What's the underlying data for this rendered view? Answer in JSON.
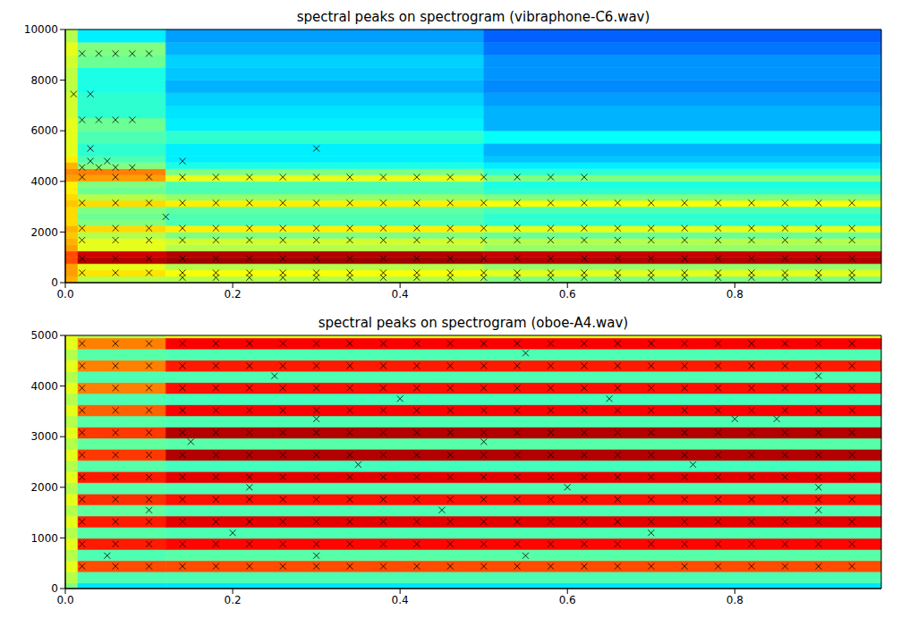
{
  "chart_data": [
    {
      "type": "heatmap",
      "title": "spectral peaks on spectrogram (vibraphone-C6.wav)",
      "xlim": [
        0,
        0.975
      ],
      "xticks": [
        {
          "value": 0,
          "label": "0.0"
        },
        {
          "value": 0.2,
          "label": "0.2"
        },
        {
          "value": 0.4,
          "label": "0.4"
        },
        {
          "value": 0.6,
          "label": "0.6"
        },
        {
          "value": 0.8,
          "label": "0.8"
        }
      ],
      "ylim": [
        0,
        10000
      ],
      "yticks": [
        0,
        2000,
        4000,
        6000,
        8000,
        10000
      ],
      "color_range": [
        0,
        1
      ],
      "x_edges": [
        0,
        0.015,
        0.12,
        0.5,
        0.975
      ],
      "y_edges": [
        0,
        250,
        500,
        750,
        1000,
        1250,
        1500,
        1750,
        2000,
        2250,
        2500,
        2750,
        3000,
        3250,
        3500,
        3750,
        4000,
        4250,
        4500,
        4750,
        5000,
        5500,
        6000,
        6500,
        7000,
        7500,
        8000,
        8500,
        9000,
        9500,
        10000
      ],
      "cells": [
        [
          0.7,
          0.55,
          0.55,
          0.5
        ],
        [
          0.72,
          0.65,
          0.62,
          0.6
        ],
        [
          0.72,
          0.6,
          0.55,
          0.52
        ],
        [
          0.8,
          0.95,
          0.97,
          0.95
        ],
        [
          0.8,
          0.92,
          0.95,
          0.93
        ],
        [
          0.72,
          0.6,
          0.55,
          0.52
        ],
        [
          0.7,
          0.6,
          0.58,
          0.55
        ],
        [
          0.68,
          0.55,
          0.5,
          0.48
        ],
        [
          0.7,
          0.66,
          0.64,
          0.6
        ],
        [
          0.66,
          0.5,
          0.45,
          0.42
        ],
        [
          0.66,
          0.48,
          0.45,
          0.42
        ],
        [
          0.66,
          0.5,
          0.47,
          0.45
        ],
        [
          0.68,
          0.66,
          0.64,
          0.62
        ],
        [
          0.66,
          0.55,
          0.52,
          0.5
        ],
        [
          0.64,
          0.48,
          0.45,
          0.42
        ],
        [
          0.64,
          0.5,
          0.45,
          0.4
        ],
        [
          0.72,
          0.72,
          0.6,
          0.5
        ],
        [
          0.74,
          0.75,
          0.5,
          0.42
        ],
        [
          0.7,
          0.5,
          0.4,
          0.36
        ],
        [
          0.64,
          0.45,
          0.36,
          0.32
        ],
        [
          0.6,
          0.42,
          0.36,
          0.3
        ],
        [
          0.6,
          0.45,
          0.42,
          0.38
        ],
        [
          0.6,
          0.48,
          0.36,
          0.3
        ],
        [
          0.58,
          0.42,
          0.35,
          0.3
        ],
        [
          0.58,
          0.42,
          0.33,
          0.28
        ],
        [
          0.56,
          0.4,
          0.3,
          0.26
        ],
        [
          0.56,
          0.4,
          0.32,
          0.27
        ],
        [
          0.58,
          0.48,
          0.33,
          0.27
        ],
        [
          0.6,
          0.5,
          0.3,
          0.24
        ],
        [
          0.55,
          0.36,
          0.28,
          0.22
        ]
      ],
      "peaks": {
        "marker": "x",
        "color": "#000000",
        "tracks": [
          {
            "freq": 200,
            "times": [
              0.14,
              0.18,
              0.22,
              0.26,
              0.3,
              0.34,
              0.38,
              0.42,
              0.46,
              0.5,
              0.54,
              0.58,
              0.62,
              0.66,
              0.7,
              0.74,
              0.78,
              0.82,
              0.86,
              0.9,
              0.94
            ]
          },
          {
            "freq": 390,
            "times": [
              0.02,
              0.06,
              0.1,
              0.14,
              0.18,
              0.22,
              0.26,
              0.3,
              0.34,
              0.38,
              0.42,
              0.46,
              0.5,
              0.54,
              0.58,
              0.62,
              0.66,
              0.7,
              0.74,
              0.78,
              0.82,
              0.86,
              0.9,
              0.94
            ]
          },
          {
            "freq": 950,
            "times": [
              0.02,
              0.06,
              0.1,
              0.14,
              0.18,
              0.22,
              0.26,
              0.3,
              0.34,
              0.38,
              0.42,
              0.46,
              0.5,
              0.54,
              0.58,
              0.62,
              0.66,
              0.7,
              0.74,
              0.78,
              0.82,
              0.86,
              0.9,
              0.94
            ]
          },
          {
            "freq": 1680,
            "times": [
              0.02,
              0.06,
              0.1,
              0.14,
              0.18,
              0.22,
              0.26,
              0.3,
              0.34,
              0.38,
              0.42,
              0.46,
              0.5,
              0.54,
              0.58,
              0.62,
              0.66,
              0.7,
              0.74,
              0.78,
              0.82,
              0.86,
              0.9,
              0.94
            ]
          },
          {
            "freq": 2150,
            "times": [
              0.02,
              0.06,
              0.1,
              0.14,
              0.18,
              0.22,
              0.26,
              0.3,
              0.34,
              0.38,
              0.42,
              0.46,
              0.5,
              0.54,
              0.58,
              0.62,
              0.66,
              0.7,
              0.74,
              0.78,
              0.82,
              0.86,
              0.9,
              0.94
            ]
          },
          {
            "freq": 2600,
            "times": [
              0.12
            ]
          },
          {
            "freq": 3150,
            "times": [
              0.02,
              0.06,
              0.1,
              0.14,
              0.18,
              0.22,
              0.26,
              0.3,
              0.34,
              0.38,
              0.42,
              0.46,
              0.5,
              0.54,
              0.58,
              0.62,
              0.66,
              0.7,
              0.74,
              0.78,
              0.82,
              0.86,
              0.9,
              0.94
            ]
          },
          {
            "freq": 4170,
            "times": [
              0.02,
              0.06,
              0.1,
              0.14,
              0.18,
              0.22,
              0.26,
              0.3,
              0.34,
              0.38,
              0.42,
              0.46,
              0.5,
              0.54,
              0.58,
              0.62
            ]
          },
          {
            "freq": 4550,
            "times": [
              0.02,
              0.04,
              0.06,
              0.08
            ]
          },
          {
            "freq": 4800,
            "times": [
              0.03,
              0.05,
              0.14
            ]
          },
          {
            "freq": 5300,
            "times": [
              0.03,
              0.3
            ]
          },
          {
            "freq": 6430,
            "times": [
              0.02,
              0.04,
              0.06,
              0.08
            ]
          },
          {
            "freq": 7450,
            "times": [
              0.01,
              0.03
            ]
          },
          {
            "freq": 9050,
            "times": [
              0.02,
              0.04,
              0.06,
              0.08,
              0.1
            ]
          }
        ]
      }
    },
    {
      "type": "heatmap",
      "title": "spectral peaks on spectrogram (oboe-A4.wav)",
      "xlim": [
        0,
        0.975
      ],
      "xticks": [
        {
          "value": 0,
          "label": "0.0"
        },
        {
          "value": 0.2,
          "label": "0.2"
        },
        {
          "value": 0.4,
          "label": "0.4"
        },
        {
          "value": 0.6,
          "label": "0.6"
        },
        {
          "value": 0.8,
          "label": "0.8"
        }
      ],
      "ylim": [
        0,
        5000
      ],
      "yticks": [
        0,
        1000,
        2000,
        3000,
        4000,
        5000
      ],
      "color_range": [
        0,
        1
      ],
      "x_edges": [
        0,
        0.015,
        0.12,
        0.975
      ],
      "y_edges": [
        0,
        110,
        330,
        550,
        770,
        990,
        1210,
        1430,
        1650,
        1870,
        2090,
        2310,
        2530,
        2750,
        2970,
        3190,
        3410,
        3630,
        3850,
        4070,
        4290,
        4510,
        4730,
        4950,
        5000
      ],
      "cells": [
        [
          0.5,
          0.35,
          0.35
        ],
        [
          0.55,
          0.45,
          0.45
        ],
        [
          0.6,
          0.8,
          0.8
        ],
        [
          0.55,
          0.45,
          0.46
        ],
        [
          0.6,
          0.85,
          0.87
        ],
        [
          0.55,
          0.46,
          0.45
        ],
        [
          0.6,
          0.85,
          0.9
        ],
        [
          0.55,
          0.47,
          0.45
        ],
        [
          0.6,
          0.83,
          0.86
        ],
        [
          0.55,
          0.46,
          0.45
        ],
        [
          0.6,
          0.85,
          0.9
        ],
        [
          0.55,
          0.46,
          0.44
        ],
        [
          0.6,
          0.82,
          0.95
        ],
        [
          0.55,
          0.47,
          0.46
        ],
        [
          0.6,
          0.82,
          0.95
        ],
        [
          0.55,
          0.46,
          0.45
        ],
        [
          0.6,
          0.78,
          0.88
        ],
        [
          0.55,
          0.45,
          0.44
        ],
        [
          0.6,
          0.75,
          0.86
        ],
        [
          0.55,
          0.45,
          0.45
        ],
        [
          0.6,
          0.75,
          0.85
        ],
        [
          0.55,
          0.46,
          0.45
        ],
        [
          0.6,
          0.75,
          0.88
        ],
        [
          0.6,
          0.55,
          0.6
        ]
      ],
      "peaks": {
        "marker": "x",
        "color": "#000000",
        "tracks": [
          {
            "freq": 440,
            "times": [
              0.02,
              0.06,
              0.1,
              0.14,
              0.18,
              0.22,
              0.26,
              0.3,
              0.34,
              0.38,
              0.42,
              0.46,
              0.5,
              0.54,
              0.58,
              0.62,
              0.66,
              0.7,
              0.74,
              0.78,
              0.82,
              0.86,
              0.9,
              0.94
            ]
          },
          {
            "freq": 880,
            "times": [
              0.02,
              0.06,
              0.1,
              0.14,
              0.18,
              0.22,
              0.26,
              0.3,
              0.34,
              0.38,
              0.42,
              0.46,
              0.5,
              0.54,
              0.58,
              0.62,
              0.66,
              0.7,
              0.74,
              0.78,
              0.82,
              0.86,
              0.9,
              0.94
            ]
          },
          {
            "freq": 1320,
            "times": [
              0.02,
              0.06,
              0.1,
              0.14,
              0.18,
              0.22,
              0.26,
              0.3,
              0.34,
              0.38,
              0.42,
              0.46,
              0.5,
              0.54,
              0.58,
              0.62,
              0.66,
              0.7,
              0.74,
              0.78,
              0.82,
              0.86,
              0.9,
              0.94
            ]
          },
          {
            "freq": 1760,
            "times": [
              0.02,
              0.06,
              0.1,
              0.14,
              0.18,
              0.22,
              0.26,
              0.3,
              0.34,
              0.38,
              0.42,
              0.46,
              0.5,
              0.54,
              0.58,
              0.62,
              0.66,
              0.7,
              0.74,
              0.78,
              0.82,
              0.86,
              0.9,
              0.94
            ]
          },
          {
            "freq": 2200,
            "times": [
              0.02,
              0.06,
              0.1,
              0.14,
              0.18,
              0.22,
              0.26,
              0.3,
              0.34,
              0.38,
              0.42,
              0.46,
              0.5,
              0.54,
              0.58,
              0.62,
              0.66,
              0.7,
              0.74,
              0.78,
              0.82,
              0.86,
              0.9,
              0.94
            ]
          },
          {
            "freq": 2640,
            "times": [
              0.02,
              0.06,
              0.1,
              0.14,
              0.18,
              0.22,
              0.26,
              0.3,
              0.34,
              0.38,
              0.42,
              0.46,
              0.5,
              0.54,
              0.58,
              0.62,
              0.66,
              0.7,
              0.74,
              0.78,
              0.82,
              0.86,
              0.9,
              0.94
            ]
          },
          {
            "freq": 3080,
            "times": [
              0.02,
              0.06,
              0.1,
              0.14,
              0.18,
              0.22,
              0.26,
              0.3,
              0.34,
              0.38,
              0.42,
              0.46,
              0.5,
              0.54,
              0.58,
              0.62,
              0.66,
              0.7,
              0.74,
              0.78,
              0.82,
              0.86,
              0.9,
              0.94
            ]
          },
          {
            "freq": 3520,
            "times": [
              0.02,
              0.06,
              0.1,
              0.14,
              0.18,
              0.22,
              0.26,
              0.3,
              0.34,
              0.38,
              0.42,
              0.46,
              0.5,
              0.54,
              0.58,
              0.62,
              0.66,
              0.7,
              0.74,
              0.78,
              0.82,
              0.86,
              0.9,
              0.94
            ]
          },
          {
            "freq": 3960,
            "times": [
              0.02,
              0.06,
              0.1,
              0.14,
              0.18,
              0.22,
              0.26,
              0.3,
              0.34,
              0.38,
              0.42,
              0.46,
              0.5,
              0.54,
              0.58,
              0.62,
              0.66,
              0.7,
              0.74,
              0.78,
              0.82,
              0.86,
              0.9,
              0.94
            ]
          },
          {
            "freq": 4400,
            "times": [
              0.02,
              0.06,
              0.1,
              0.14,
              0.18,
              0.22,
              0.26,
              0.3,
              0.34,
              0.38,
              0.42,
              0.46,
              0.5,
              0.54,
              0.58,
              0.62,
              0.66,
              0.7,
              0.74,
              0.78,
              0.82,
              0.86,
              0.9,
              0.94
            ]
          },
          {
            "freq": 4840,
            "times": [
              0.02,
              0.06,
              0.1,
              0.14,
              0.18,
              0.22,
              0.26,
              0.3,
              0.34,
              0.38,
              0.42,
              0.46,
              0.5,
              0.54,
              0.58,
              0.62,
              0.66,
              0.7,
              0.74,
              0.78,
              0.82,
              0.86,
              0.9,
              0.94
            ]
          },
          {
            "freq": 650,
            "times": [
              0.05,
              0.3,
              0.55
            ]
          },
          {
            "freq": 1100,
            "times": [
              0.2,
              0.7
            ]
          },
          {
            "freq": 1550,
            "times": [
              0.1,
              0.45,
              0.9
            ]
          },
          {
            "freq": 2000,
            "times": [
              0.22,
              0.6,
              0.9
            ]
          },
          {
            "freq": 2450,
            "times": [
              0.35,
              0.75
            ]
          },
          {
            "freq": 2900,
            "times": [
              0.15,
              0.5
            ]
          },
          {
            "freq": 3350,
            "times": [
              0.3,
              0.8,
              0.85
            ]
          },
          {
            "freq": 3750,
            "times": [
              0.4,
              0.65
            ]
          },
          {
            "freq": 4200,
            "times": [
              0.25,
              0.9
            ]
          },
          {
            "freq": 4650,
            "times": [
              0.55
            ]
          }
        ]
      }
    }
  ]
}
